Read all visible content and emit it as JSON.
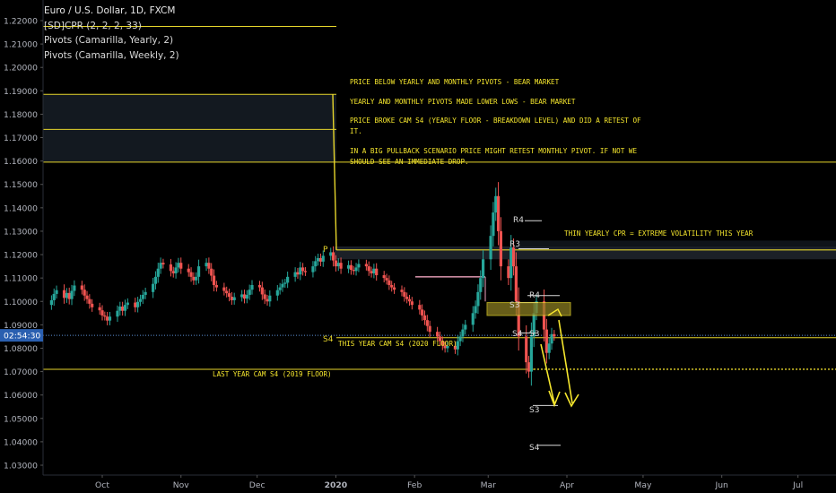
{
  "legend": {
    "title": "Euro / U.S. Dollar, 1D, FXCM",
    "study1": "[SD]CPR (2, 2, 2, 33)",
    "study2": "Pivots (Camarilla, Yearly, 2)",
    "study3": "Pivots (Camarilla, Weekly, 2)"
  },
  "price_tag": {
    "label": "02:54:30",
    "value": 1.0855
  },
  "colors": {
    "up": "#26a69a",
    "down": "#ef5350",
    "pivot": "#e6d52b",
    "annotation": "#f5e62d",
    "axis_text": "#b2b5be",
    "price_tag": "#2a5fb0"
  },
  "annotations": [
    {
      "text": "PRICE BELOW YEARLY AND MONTHLY PIVOTS - BEAR MARKET"
    },
    {
      "text": "YEARLY AND MONTHLY PIVOTS MADE LOWER LOWS - BEAR MARKET"
    },
    {
      "text": "PRICE BROKE CAM S4 (YEARLY FLOOR - BREAKDOWN LEVEL) AND DID A RETEST OF"
    },
    {
      "text": "IT."
    },
    {
      "text": "IN A BIG PULLBACK SCENARIO PRICE MIGHT RETEST MONTHLY PIVOT. IF NOT WE"
    },
    {
      "text": "SHOULD SEE AN IMMEDIATE DROP."
    },
    {
      "text": "THIN YEARLY CPR = EXTREME VOLATILITY THIS YEAR"
    },
    {
      "text": "THIS YEAR CAM S4 (2020 FLOOR)"
    },
    {
      "text": "LAST YEAR CAM S4 (2019 FLOOR)"
    }
  ],
  "pivot_labels": [
    "P",
    "S4",
    "R4",
    "R4",
    "R3",
    "S3",
    "S4",
    "S3",
    "S3",
    "S4"
  ],
  "chart_data": {
    "type": "candlestick",
    "title": "Euro / U.S. Dollar, 1D, FXCM",
    "y_ticks": [
      1.03,
      1.04,
      1.05,
      1.06,
      1.07,
      1.08,
      1.09,
      1.1,
      1.11,
      1.12,
      1.13,
      1.14,
      1.15,
      1.16,
      1.17,
      1.18,
      1.19,
      1.2,
      1.21,
      1.22
    ],
    "y_ticklabels": [
      "1.03000",
      "1.04000",
      "1.05000",
      "1.06000",
      "1.07000",
      "1.08000",
      "1.09000",
      "1.10000",
      "1.11000",
      "1.12000",
      "1.13000",
      "1.14000",
      "1.15000",
      "1.16000",
      "1.17000",
      "1.18000",
      "1.19000",
      "1.20000",
      "1.21000",
      "1.22000"
    ],
    "ylim": [
      1.027,
      1.2275
    ],
    "x_ticklabels": [
      "Oct",
      "Nov",
      "Dec",
      "2020",
      "Feb",
      "Mar",
      "Apr",
      "May",
      "Jun",
      "Jul"
    ],
    "x_range": [
      "2019-09-11",
      "2020-07-20"
    ],
    "closes": [
      1.1005,
      1.1032,
      1.1048,
      1.1015,
      1.1036,
      1.101,
      1.1045,
      1.1068,
      1.105,
      1.1025,
      1.101,
      1.099,
      1.0975,
      1.0962,
      1.094,
      1.0935,
      1.0918,
      1.0935,
      1.096,
      1.0978,
      1.096,
      1.0985,
      1.0995,
      1.0975,
      1.0998,
      1.101,
      1.1028,
      1.104,
      1.1075,
      1.1105,
      1.114,
      1.1165,
      1.1158,
      1.113,
      1.112,
      1.1145,
      1.1165,
      1.114,
      1.1125,
      1.1105,
      1.109,
      1.1105,
      1.115,
      1.1165,
      1.114,
      1.111,
      1.107,
      1.106,
      1.1045,
      1.1035,
      1.102,
      1.1005,
      1.1018,
      1.103,
      1.1012,
      1.1028,
      1.105,
      1.107,
      1.106,
      1.103,
      1.101,
      1.1,
      1.1025,
      1.1048,
      1.106,
      1.1075,
      1.108,
      1.1105,
      1.1125,
      1.1115,
      1.1145,
      1.113,
      1.1125,
      1.115,
      1.1172,
      1.1185,
      1.117,
      1.1195,
      1.121,
      1.1175,
      1.115,
      1.1165,
      1.114,
      1.1155,
      1.1135,
      1.113,
      1.1145,
      1.116,
      1.115,
      1.113,
      1.112,
      1.114,
      1.1112,
      1.11,
      1.109,
      1.107,
      1.106,
      1.105,
      1.104,
      1.102,
      1.101,
      1.1,
      1.0985,
      1.0965,
      1.094,
      1.092,
      1.0895,
      1.087,
      1.085,
      1.083,
      1.0812,
      1.08,
      1.081,
      1.0795,
      1.083,
      1.085,
      1.088,
      1.09,
      1.095,
      1.098,
      1.104,
      1.11,
      1.118,
      1.128,
      1.138,
      1.145,
      1.13,
      1.115,
      1.11,
      1.123,
      1.115,
      1.1,
      1.085,
      1.074,
      1.07,
      1.085,
      1.095,
      1.1,
      1.088,
      1.078,
      1.082,
      1.086,
      1.085
    ]
  }
}
